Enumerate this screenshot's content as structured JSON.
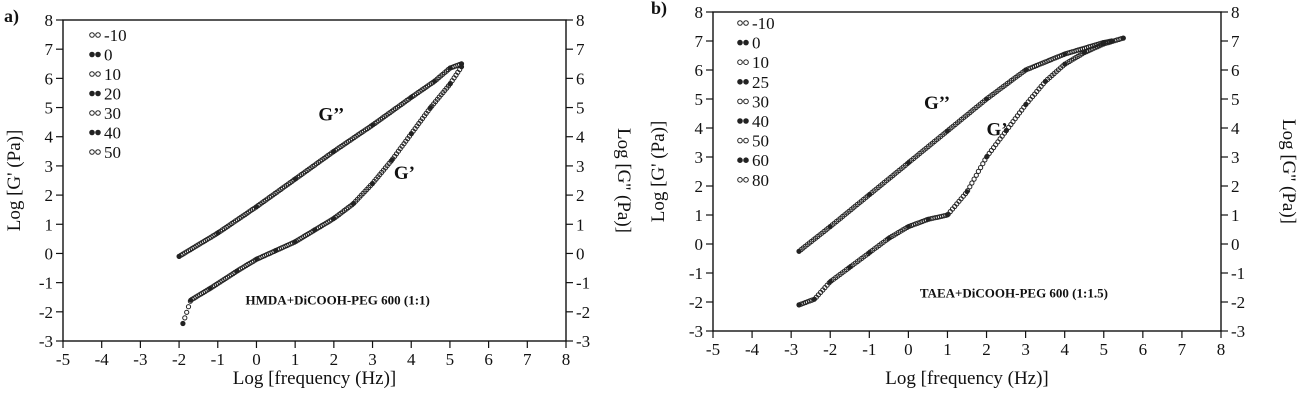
{
  "chart_data": [
    {
      "panel_label": "a)",
      "type": "scatter",
      "xlabel": "Log [frequency (Hz)]",
      "ylabel": "Log [G' (Pa)]",
      "ylabel_right": "Log [G'' (Pa)]",
      "xlim": [
        -5,
        8
      ],
      "ylim": [
        -3,
        8
      ],
      "x_ticks": [
        "-5",
        "-4",
        "-3",
        "-2",
        "-1",
        "0",
        "1",
        "2",
        "3",
        "4",
        "5",
        "6",
        "7",
        "8"
      ],
      "y_ticks": [
        "-3",
        "-2",
        "-1",
        "0",
        "1",
        "2",
        "3",
        "4",
        "5",
        "6",
        "7",
        "8"
      ],
      "legend_position": "top-left",
      "legend": [
        "-10",
        "0",
        "10",
        "20",
        "30",
        "40",
        "50"
      ],
      "annotations": [
        {
          "text": "G’’",
          "x": 1.6,
          "y": 4.55
        },
        {
          "text": "G’",
          "x": 3.55,
          "y": 2.55
        },
        {
          "text": "HMDA+DiCOOH-PEG 600 (1:1)",
          "x": 2.1,
          "y": -1.75
        }
      ],
      "series": [
        {
          "values": [
            [
              -2.0,
              -0.1
            ],
            [
              -1.0,
              0.7
            ],
            [
              0.0,
              1.6
            ],
            [
              1.0,
              2.55
            ],
            [
              2.0,
              3.5
            ],
            [
              3.0,
              4.4
            ],
            [
              4.0,
              5.35
            ],
            [
              4.6,
              5.9
            ],
            [
              5.0,
              6.35
            ],
            [
              5.3,
              6.5
            ]
          ]
        },
        {
          "values": [
            [
              -1.9,
              -2.4
            ],
            [
              -1.7,
              -1.6
            ],
            [
              -1.2,
              -1.2
            ],
            [
              -0.5,
              -0.6
            ],
            [
              0.0,
              -0.2
            ],
            [
              0.5,
              0.1
            ],
            [
              1.0,
              0.4
            ],
            [
              1.5,
              0.8
            ],
            [
              2.0,
              1.2
            ],
            [
              2.5,
              1.7
            ],
            [
              3.0,
              2.4
            ],
            [
              3.5,
              3.2
            ],
            [
              4.0,
              4.1
            ],
            [
              4.5,
              5.0
            ],
            [
              5.0,
              5.8
            ],
            [
              5.3,
              6.4
            ]
          ]
        }
      ]
    },
    {
      "panel_label": "b)",
      "type": "scatter",
      "xlabel": "Log [frequency (Hz)]",
      "ylabel": "Log [G' (Pa)]",
      "ylabel_right": "Log [G'' (Pa)]",
      "xlim": [
        -5,
        8
      ],
      "ylim": [
        -3,
        8
      ],
      "x_ticks": [
        "-5",
        "-4",
        "-3",
        "-2",
        "-1",
        "0",
        "1",
        "2",
        "3",
        "4",
        "5",
        "6",
        "7",
        "8"
      ],
      "y_ticks": [
        "-3",
        "-2",
        "-1",
        "0",
        "1",
        "2",
        "3",
        "4",
        "5",
        "6",
        "7",
        "8"
      ],
      "legend_position": "top-left",
      "legend": [
        "-10",
        "0",
        "10",
        "25",
        "30",
        "40",
        "50",
        "60",
        "80"
      ],
      "annotations": [
        {
          "text": "G’’",
          "x": 0.4,
          "y": 4.65
        },
        {
          "text": "G’",
          "x": 2.0,
          "y": 3.75
        },
        {
          "text": "TAEA+DiCOOH-PEG 600 (1:1.5)",
          "x": 2.7,
          "y": -1.85
        }
      ],
      "series": [
        {
          "values": [
            [
              -2.8,
              -0.25
            ],
            [
              -2.0,
              0.6
            ],
            [
              -1.0,
              1.7
            ],
            [
              0.0,
              2.8
            ],
            [
              1.0,
              3.9
            ],
            [
              2.0,
              5.0
            ],
            [
              3.0,
              6.0
            ],
            [
              4.0,
              6.55
            ],
            [
              5.0,
              6.95
            ],
            [
              5.2,
              7.0
            ]
          ]
        },
        {
          "values": [
            [
              -2.8,
              -2.1
            ],
            [
              -2.4,
              -1.9
            ],
            [
              -2.0,
              -1.3
            ],
            [
              -1.5,
              -0.8
            ],
            [
              -1.0,
              -0.3
            ],
            [
              -0.5,
              0.2
            ],
            [
              0.0,
              0.6
            ],
            [
              0.5,
              0.85
            ],
            [
              1.0,
              1.0
            ],
            [
              1.5,
              1.8
            ],
            [
              2.0,
              3.0
            ],
            [
              2.5,
              3.9
            ],
            [
              3.0,
              4.8
            ],
            [
              3.5,
              5.6
            ],
            [
              4.0,
              6.2
            ],
            [
              4.5,
              6.6
            ],
            [
              5.0,
              6.9
            ],
            [
              5.5,
              7.1
            ]
          ]
        }
      ]
    }
  ]
}
